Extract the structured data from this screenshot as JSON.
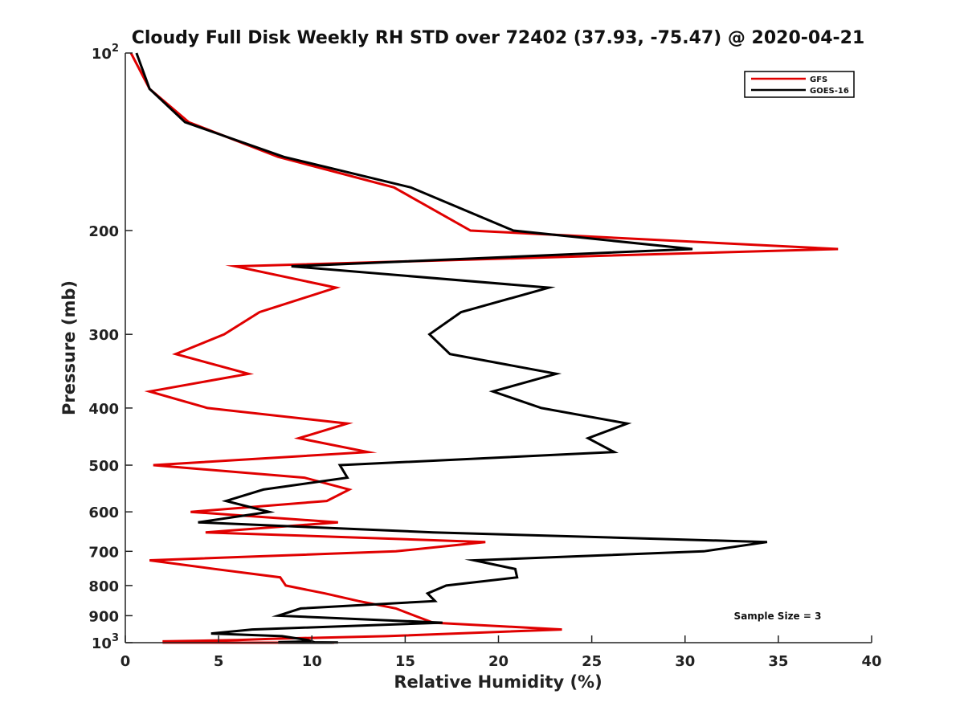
{
  "chart_data": {
    "type": "line",
    "title": "Cloudy Full Disk Weekly RH STD over 72402 (37.93, -75.47) @ 2020-04-21",
    "xlabel": "Relative Humidity (%)",
    "ylabel": "Pressure (mb)",
    "xlim": [
      0,
      40
    ],
    "ylim": [
      100,
      1000
    ],
    "y_scale": "log",
    "y_reversed": true,
    "xticks": [
      "0",
      "5",
      "10",
      "15",
      "20",
      "25",
      "30",
      "35",
      "40"
    ],
    "yticks": [
      {
        "value": 100,
        "base": "10",
        "exp": "2"
      },
      {
        "value": 200,
        "label": "200"
      },
      {
        "value": 300,
        "label": "300"
      },
      {
        "value": 400,
        "label": "400"
      },
      {
        "value": 500,
        "label": "500"
      },
      {
        "value": 600,
        "label": "600"
      },
      {
        "value": 700,
        "label": "700"
      },
      {
        "value": 800,
        "label": "800"
      },
      {
        "value": 900,
        "label": "900"
      },
      {
        "value": 1000,
        "base": "10",
        "exp": "3"
      }
    ],
    "legend_position": "top-right",
    "grid": false,
    "annotation": "Sample Size = 3",
    "series": [
      {
        "name": "GFS",
        "color": "#e00000",
        "points": [
          [
            0.3,
            100
          ],
          [
            1.3,
            115
          ],
          [
            3.4,
            131
          ],
          [
            8.2,
            150
          ],
          [
            14.4,
            169
          ],
          [
            18.5,
            200
          ],
          [
            38.2,
            215
          ],
          [
            5.9,
            230
          ],
          [
            11.3,
            250
          ],
          [
            7.2,
            275
          ],
          [
            5.3,
            300
          ],
          [
            2.7,
            324
          ],
          [
            6.6,
            350
          ],
          [
            1.3,
            375
          ],
          [
            4.4,
            400
          ],
          [
            11.9,
            425
          ],
          [
            9.3,
            450
          ],
          [
            13.0,
            475
          ],
          [
            1.5,
            500
          ],
          [
            9.6,
            525
          ],
          [
            12.0,
            550
          ],
          [
            10.8,
            575
          ],
          [
            3.5,
            600
          ],
          [
            11.4,
            625
          ],
          [
            4.3,
            650
          ],
          [
            19.3,
            675
          ],
          [
            14.5,
            700
          ],
          [
            1.3,
            725
          ],
          [
            4.8,
            750
          ],
          [
            8.3,
            775
          ],
          [
            8.6,
            800
          ],
          [
            10.7,
            825
          ],
          [
            12.5,
            850
          ],
          [
            14.5,
            875
          ],
          [
            15.5,
            900
          ],
          [
            16.5,
            925
          ],
          [
            23.4,
            950
          ],
          [
            14.0,
            975
          ],
          [
            7.8,
            985
          ],
          [
            6.0,
            990
          ],
          [
            2.0,
            995
          ],
          [
            2.4,
            998
          ],
          [
            4.5,
            999
          ],
          [
            3.8,
            999.4
          ],
          [
            2.0,
            999.7
          ],
          [
            4.5,
            999.8
          ],
          [
            5.9,
            999.9
          ],
          [
            11.2,
            1000
          ]
        ]
      },
      {
        "name": "GOES-16",
        "color": "#000000",
        "points": [
          [
            0.6,
            100
          ],
          [
            1.3,
            115
          ],
          [
            3.2,
            131
          ],
          [
            8.5,
            150
          ],
          [
            15.3,
            169
          ],
          [
            20.8,
            200
          ],
          [
            30.4,
            215
          ],
          [
            8.9,
            230
          ],
          [
            22.7,
            250
          ],
          [
            18.0,
            275
          ],
          [
            16.3,
            300
          ],
          [
            17.4,
            324
          ],
          [
            23.1,
            350
          ],
          [
            19.7,
            375
          ],
          [
            22.3,
            400
          ],
          [
            26.9,
            425
          ],
          [
            24.8,
            450
          ],
          [
            26.2,
            475
          ],
          [
            11.5,
            500
          ],
          [
            11.9,
            525
          ],
          [
            7.4,
            550
          ],
          [
            5.4,
            575
          ],
          [
            7.7,
            600
          ],
          [
            3.9,
            625
          ],
          [
            16.5,
            650
          ],
          [
            34.4,
            675
          ],
          [
            31.0,
            700
          ],
          [
            18.7,
            725
          ],
          [
            20.9,
            750
          ],
          [
            21.0,
            775
          ],
          [
            17.2,
            800
          ],
          [
            16.2,
            825
          ],
          [
            16.6,
            850
          ],
          [
            9.4,
            875
          ],
          [
            8.2,
            900
          ],
          [
            17.0,
            925
          ],
          [
            6.8,
            950
          ],
          [
            4.6,
            965
          ],
          [
            8.4,
            975
          ],
          [
            9.8,
            990
          ],
          [
            10.0,
            995
          ],
          [
            8.2,
            998
          ],
          [
            11.4,
            999
          ],
          [
            8.2,
            999.5
          ],
          [
            10.0,
            999.8
          ],
          [
            8.2,
            999.9
          ],
          [
            11.1,
            1000
          ]
        ]
      }
    ]
  }
}
